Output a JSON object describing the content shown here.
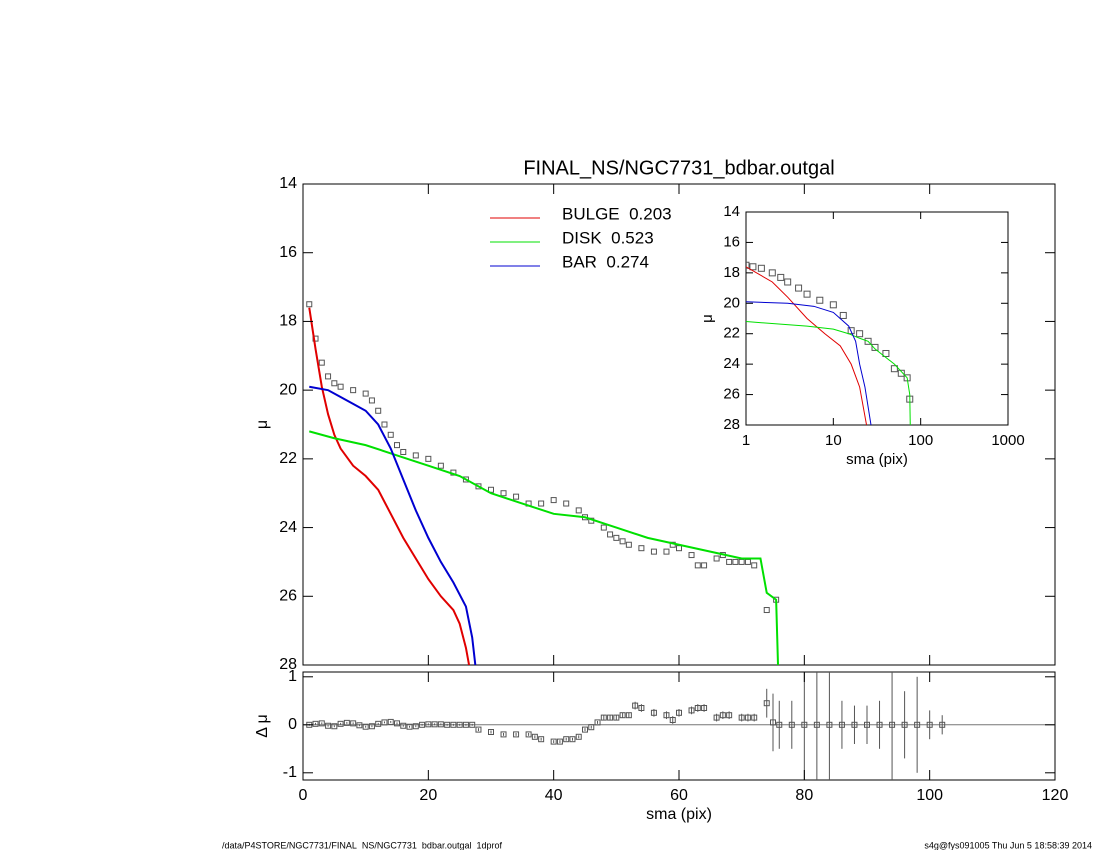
{
  "footer_left": "/data/P4STORE/NGC7731/FINAL_NS/NGC7731_bdbar.outgal_1dprof",
  "footer_right": "s4g@fys091005  Thu Jun  5 18:58:39 2014",
  "chart_data": [
    {
      "type": "line",
      "title": "FINAL_NS/NGC7731_bdbar.outgal",
      "ylabel": "μ",
      "xlim": [
        0,
        120
      ],
      "xticks": [
        0,
        20,
        40,
        60,
        80,
        100,
        120
      ],
      "ylim": [
        14,
        28
      ],
      "y_inverted": true,
      "yticks": [
        14,
        16,
        18,
        20,
        22,
        24,
        26,
        28
      ],
      "series": [
        {
          "name": "BULGE  0.203",
          "color": "#e00000",
          "x": [
            1,
            2,
            3,
            4,
            5,
            6,
            8,
            10,
            12,
            14,
            16,
            18,
            20,
            22,
            24,
            25,
            26,
            26.5
          ],
          "values": [
            17.6,
            18.8,
            19.9,
            20.7,
            21.3,
            21.7,
            22.2,
            22.5,
            22.9,
            23.6,
            24.3,
            24.9,
            25.5,
            26.0,
            26.4,
            26.8,
            27.5,
            28
          ]
        },
        {
          "name": "DISK  0.523",
          "color": "#00e000",
          "x": [
            1,
            5,
            10,
            15,
            20,
            25,
            30,
            35,
            40,
            45,
            50,
            55,
            60,
            65,
            70,
            73,
            74,
            75.5,
            75.8
          ],
          "values": [
            21.2,
            21.4,
            21.6,
            21.9,
            22.2,
            22.5,
            23.0,
            23.3,
            23.6,
            23.7,
            24.0,
            24.3,
            24.5,
            24.7,
            24.9,
            24.9,
            25.9,
            26.1,
            28
          ]
        },
        {
          "name": "BAR  0.274",
          "color": "#0000d0",
          "x": [
            1,
            4,
            6,
            8,
            10,
            12,
            14,
            16,
            18,
            20,
            22,
            24,
            26,
            27,
            27.5
          ],
          "values": [
            19.9,
            20.0,
            20.2,
            20.4,
            20.6,
            21.0,
            21.7,
            22.6,
            23.5,
            24.3,
            25.0,
            25.6,
            26.3,
            27.2,
            28
          ]
        }
      ],
      "points": {
        "color": "#555555",
        "x": [
          1,
          2,
          3,
          4,
          5,
          6,
          8,
          10,
          11,
          12,
          13,
          14,
          15,
          16,
          18,
          20,
          22,
          24,
          26,
          28,
          30,
          32,
          34,
          36,
          38,
          40,
          42,
          44,
          45,
          46,
          48,
          49,
          50,
          51,
          52,
          54,
          56,
          58,
          59,
          60,
          62,
          63,
          64,
          66,
          67,
          68,
          69,
          70,
          71,
          72,
          74,
          75.5
        ],
        "values": [
          17.5,
          18.5,
          19.2,
          19.6,
          19.8,
          19.9,
          20.0,
          20.1,
          20.3,
          20.6,
          21.0,
          21.3,
          21.6,
          21.8,
          21.9,
          22.0,
          22.2,
          22.4,
          22.6,
          22.8,
          22.9,
          23.0,
          23.1,
          23.3,
          23.3,
          23.2,
          23.3,
          23.5,
          23.7,
          23.8,
          24.0,
          24.2,
          24.3,
          24.4,
          24.5,
          24.6,
          24.7,
          24.7,
          24.5,
          24.6,
          24.8,
          25.1,
          25.1,
          24.9,
          24.8,
          25.0,
          25.0,
          25.0,
          25.0,
          25.1,
          26.4,
          26.1
        ]
      }
    },
    {
      "type": "line",
      "xscale": "log",
      "xlabel": "sma (pix)",
      "ylabel": "μ",
      "xlim": [
        1,
        1000
      ],
      "xticks": [
        1,
        10,
        100,
        1000
      ],
      "ylim": [
        14,
        28
      ],
      "y_inverted": true,
      "yticks": [
        14,
        16,
        18,
        20,
        22,
        24,
        26,
        28
      ],
      "series": [
        {
          "color": "#e00000",
          "x": [
            1,
            2,
            3,
            5,
            8,
            12,
            16,
            20,
            24
          ],
          "values": [
            17.6,
            18.6,
            19.6,
            21.0,
            22.0,
            22.8,
            24.0,
            25.5,
            28
          ]
        },
        {
          "color": "#00e000",
          "x": [
            1,
            5,
            10,
            15,
            20,
            25,
            30,
            50,
            70,
            75,
            76
          ],
          "values": [
            21.2,
            21.5,
            21.7,
            22.0,
            22.3,
            22.5,
            23.0,
            24.0,
            24.9,
            26.0,
            28
          ]
        },
        {
          "color": "#0000d0",
          "x": [
            1,
            3,
            6,
            10,
            15,
            18,
            20,
            23,
            27
          ],
          "values": [
            19.9,
            20.0,
            20.2,
            20.6,
            21.5,
            22.5,
            24.0,
            25.5,
            28
          ]
        }
      ],
      "points": {
        "color": "#555555",
        "x": [
          1,
          1.2,
          1.5,
          2,
          2.5,
          3,
          4,
          5,
          7,
          10,
          13,
          16,
          20,
          25,
          30,
          40,
          50,
          60,
          70,
          75
        ],
        "values": [
          17.5,
          17.6,
          17.7,
          18.0,
          18.3,
          18.6,
          19.0,
          19.4,
          19.8,
          20.1,
          20.8,
          21.8,
          22.0,
          22.5,
          22.9,
          23.3,
          24.3,
          24.6,
          24.9,
          26.3
        ]
      }
    },
    {
      "type": "errorbar",
      "xlabel": "sma (pix)",
      "ylabel": "Δ μ",
      "xlim": [
        0,
        120
      ],
      "xticks": [
        0,
        20,
        40,
        60,
        80,
        100,
        120
      ],
      "ylim": [
        -1.15,
        1.1
      ],
      "yticks": [
        -1,
        0,
        1
      ],
      "color": "#555555",
      "x": [
        1,
        2,
        3,
        4,
        5,
        6,
        7,
        8,
        9,
        10,
        11,
        12,
        13,
        14,
        15,
        16,
        17,
        18,
        19,
        20,
        21,
        22,
        23,
        24,
        25,
        26,
        27,
        28,
        30,
        32,
        34,
        36,
        37,
        38,
        40,
        41,
        42,
        43,
        44,
        45,
        46,
        47,
        48,
        49,
        50,
        51,
        52,
        53,
        54,
        56,
        58,
        59,
        60,
        62,
        63,
        64,
        66,
        67,
        68,
        70,
        71,
        72,
        74,
        75,
        76,
        78,
        80,
        82,
        84,
        86,
        88,
        90,
        92,
        94,
        96,
        98,
        100,
        102
      ],
      "values": [
        0,
        0.02,
        0.03,
        -0.02,
        -0.03,
        0.02,
        0.04,
        0.03,
        -0.01,
        -0.04,
        -0.03,
        0.02,
        0.05,
        0.06,
        0.03,
        -0.02,
        -0.04,
        -0.03,
        0,
        0.01,
        0.01,
        0.01,
        0,
        0,
        0,
        0,
        0,
        -0.1,
        -0.15,
        -0.2,
        -0.2,
        -0.2,
        -0.25,
        -0.3,
        -0.35,
        -0.35,
        -0.3,
        -0.3,
        -0.25,
        -0.1,
        -0.05,
        0.05,
        0.15,
        0.15,
        0.15,
        0.2,
        0.2,
        0.4,
        0.35,
        0.25,
        0.2,
        0.1,
        0.25,
        0.3,
        0.35,
        0.35,
        0.15,
        0.2,
        0.2,
        0.15,
        0.15,
        0.15,
        0.45,
        0.05,
        0,
        0,
        0,
        0,
        0,
        0,
        0,
        0,
        0,
        0,
        0,
        0,
        0,
        0
      ],
      "errors": [
        0.02,
        0.02,
        0.02,
        0.02,
        0.02,
        0.02,
        0.02,
        0.02,
        0.02,
        0.02,
        0.02,
        0.02,
        0.02,
        0.02,
        0.02,
        0.02,
        0.02,
        0.02,
        0.02,
        0.02,
        0.02,
        0.02,
        0.02,
        0.02,
        0.02,
        0.02,
        0.02,
        0.03,
        0.03,
        0.03,
        0.03,
        0.03,
        0.03,
        0.03,
        0.03,
        0.03,
        0.03,
        0.03,
        0.03,
        0.03,
        0.03,
        0.03,
        0.05,
        0.05,
        0.05,
        0.05,
        0.05,
        0.08,
        0.08,
        0.08,
        0.08,
        0.08,
        0.08,
        0.08,
        0.08,
        0.08,
        0.08,
        0.08,
        0.08,
        0.08,
        0.08,
        0.08,
        0.3,
        0.6,
        0.5,
        0.5,
        1.5,
        1.5,
        1.5,
        0.5,
        0.4,
        0.4,
        0.5,
        1.5,
        0.7,
        1.0,
        0.3,
        0.2
      ]
    }
  ]
}
